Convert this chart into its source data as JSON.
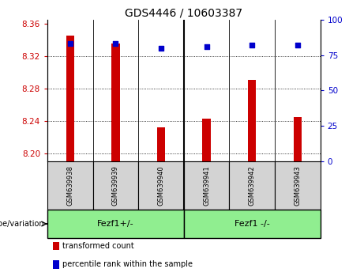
{
  "title": "GDS4446 / 10603387",
  "samples": [
    "GSM639938",
    "GSM639939",
    "GSM639940",
    "GSM639941",
    "GSM639942",
    "GSM639943"
  ],
  "transformed_counts": [
    8.345,
    8.335,
    8.232,
    8.243,
    8.29,
    8.245
  ],
  "percentile_ranks": [
    83,
    83,
    80,
    81,
    82,
    82
  ],
  "ylim_left": [
    8.19,
    8.365
  ],
  "ylim_right": [
    0,
    100
  ],
  "yticks_left": [
    8.2,
    8.24,
    8.28,
    8.32,
    8.36
  ],
  "yticks_right": [
    0,
    25,
    50,
    75,
    100
  ],
  "group1_label": "Fezf1+/-",
  "group2_label": "Fezf1 -/-",
  "group_color": "#90EE90",
  "bar_color": "#CC0000",
  "marker_color": "#0000CC",
  "bar_bottom": 8.19,
  "legend_items": [
    {
      "label": "transformed count",
      "color": "#CC0000"
    },
    {
      "label": "percentile rank within the sample",
      "color": "#0000CC"
    }
  ],
  "sample_box_color": "#d3d3d3",
  "divider_after": 2
}
